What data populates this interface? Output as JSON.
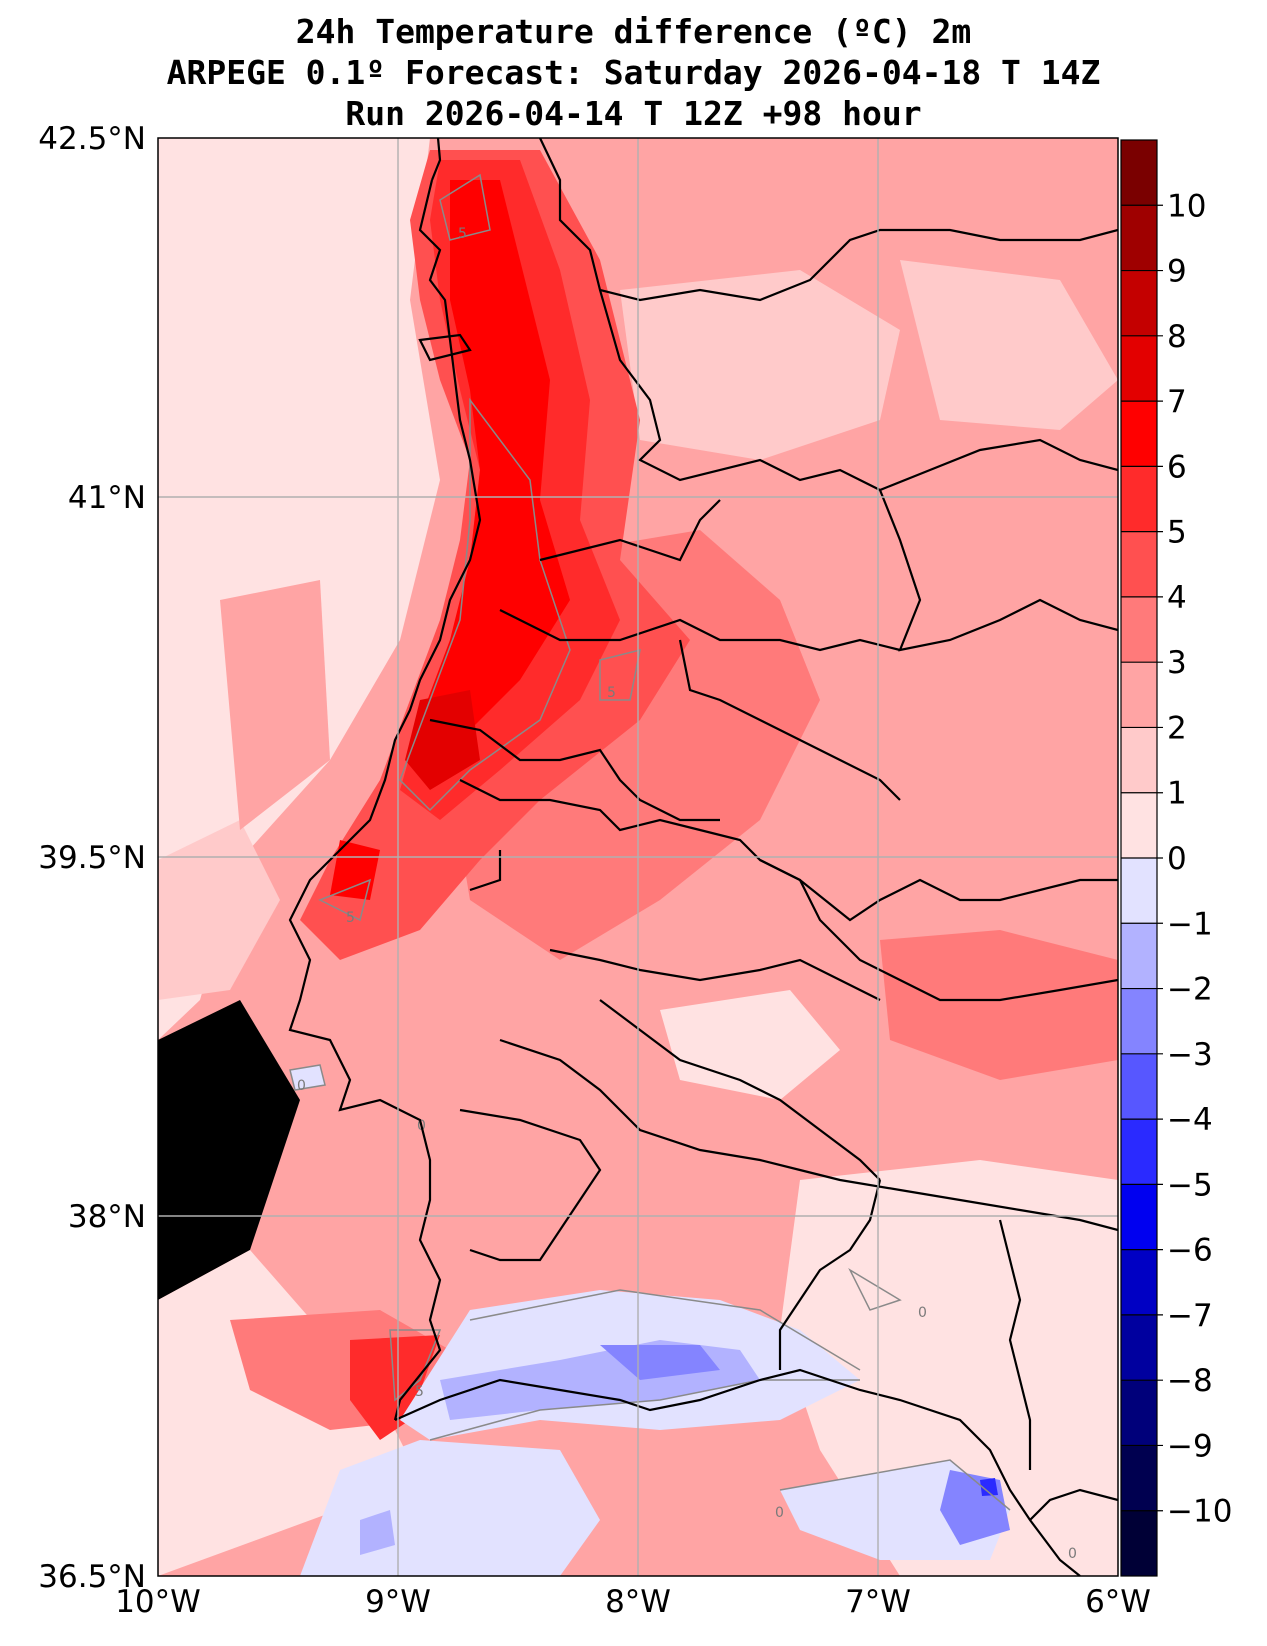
{
  "title": {
    "line1": "24h Temperature difference (ºC) 2m",
    "line2": "ARPEGE 0.1º Forecast: Saturday 2026-04-18 T 14Z",
    "line3": "Run 2026-04-14 T 12Z +98 hour"
  },
  "map": {
    "lat_labels": [
      "42.5°N",
      "41°N",
      "39.5°N",
      "38°N",
      "36.5°N"
    ],
    "lon_labels": [
      "10°W",
      "9°W",
      "8°W",
      "7°W",
      "6°W"
    ],
    "contour_labels": [
      "5",
      "5",
      "5",
      "5",
      "0",
      "0",
      "0",
      "0",
      "0"
    ]
  },
  "colorbar": {
    "labels": [
      "10",
      "9",
      "8",
      "7",
      "6",
      "5",
      "4",
      "3",
      "2",
      "1",
      "0",
      "−1",
      "−2",
      "−3",
      "−4",
      "−5",
      "−6",
      "−7",
      "−8",
      "−9",
      "−10"
    ],
    "colors": [
      "#7a0000",
      "#9f0000",
      "#c40000",
      "#e30000",
      "#ff0000",
      "#ff2b2b",
      "#ff5050",
      "#ff7a7a",
      "#ffa4a4",
      "#ffcaca",
      "#ffe2e2",
      "#e2e2ff",
      "#b2b2ff",
      "#8484ff",
      "#5757ff",
      "#2a2aff",
      "#0000f0",
      "#0000c4",
      "#00009f",
      "#00007a",
      "#000050",
      "#000036"
    ]
  }
}
